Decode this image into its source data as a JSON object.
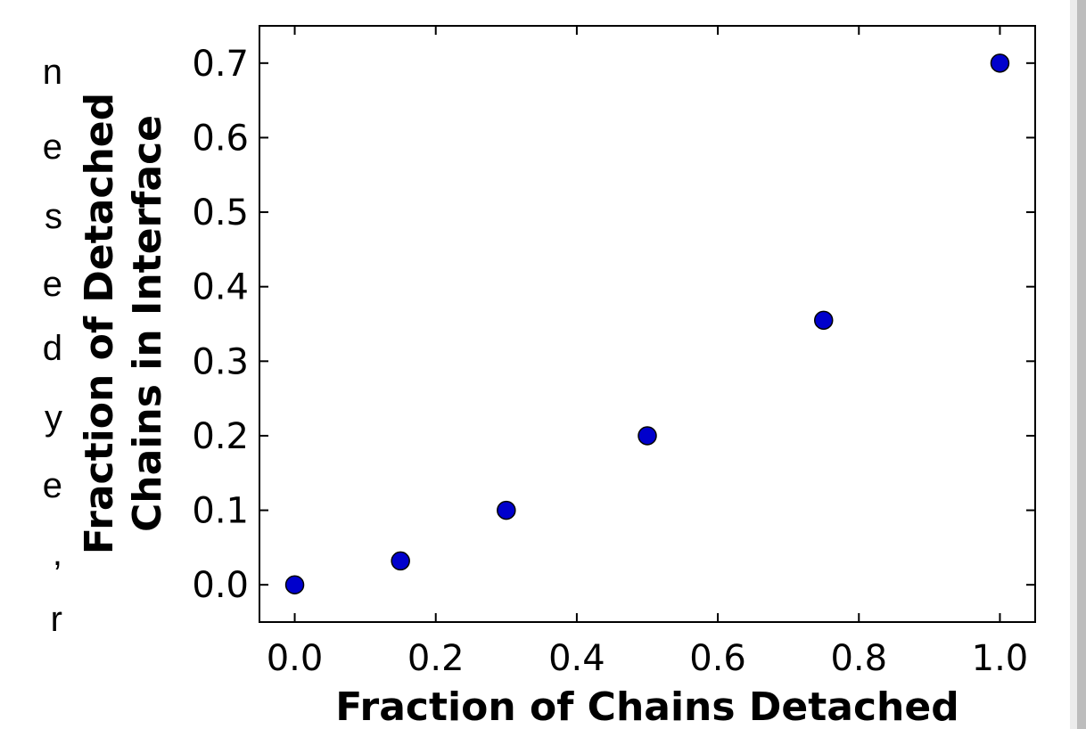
{
  "left_text_fragments": [
    "n",
    "e",
    "s",
    "e",
    "d",
    "y",
    "e",
    ",",
    "r"
  ],
  "chart_data": {
    "type": "scatter",
    "title": "",
    "xlabel": "Fraction of Chains Detached",
    "ylabel_lines": [
      "Fraction of Detached",
      "Chains in Interface"
    ],
    "xlim": [
      -0.05,
      1.05
    ],
    "ylim": [
      -0.05,
      0.75
    ],
    "x_ticks": [
      0.0,
      0.2,
      0.4,
      0.6,
      0.8,
      1.0
    ],
    "x_tick_labels": [
      "0.0",
      "0.2",
      "0.4",
      "0.6",
      "0.8",
      "1.0"
    ],
    "y_ticks": [
      0.0,
      0.1,
      0.2,
      0.3,
      0.4,
      0.5,
      0.6,
      0.7
    ],
    "y_tick_labels": [
      "0.0",
      "0.1",
      "0.2",
      "0.3",
      "0.4",
      "0.5",
      "0.6",
      "0.7"
    ],
    "grid": false,
    "marker_color": "#0000cc",
    "points": [
      {
        "x": 0.0,
        "y": 0.0
      },
      {
        "x": 0.15,
        "y": 0.032
      },
      {
        "x": 0.3,
        "y": 0.1
      },
      {
        "x": 0.5,
        "y": 0.2
      },
      {
        "x": 0.75,
        "y": 0.355
      },
      {
        "x": 1.0,
        "y": 0.7
      }
    ]
  }
}
